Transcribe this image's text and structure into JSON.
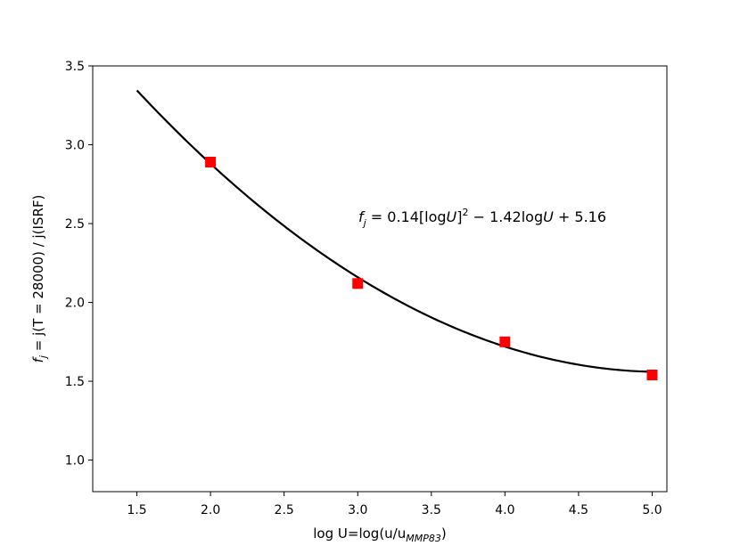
{
  "chart_data": {
    "type": "scatter",
    "title": "",
    "xlabel": {
      "main": "log U=log(u/u",
      "sub": "MMP83",
      "tail": ")"
    },
    "ylabel": {
      "f": "f",
      "fsub": "j",
      "rest": " = j(T = 28000) / j(ISRF)"
    },
    "xlim": [
      1.2,
      5.1
    ],
    "ylim": [
      0.8,
      3.5
    ],
    "xticks": [
      1.5,
      2.0,
      2.5,
      3.0,
      3.5,
      4.0,
      4.5,
      5.0
    ],
    "xtick_labels": [
      "1.5",
      "2.0",
      "2.5",
      "3.0",
      "3.5",
      "4.0",
      "4.5",
      "5.0"
    ],
    "yticks": [
      1.0,
      1.5,
      2.0,
      2.5,
      3.0,
      3.5
    ],
    "ytick_labels": [
      "1.0",
      "1.5",
      "2.0",
      "2.5",
      "3.0",
      "3.5"
    ],
    "grid": false,
    "series": [
      {
        "kind": "points",
        "marker": "square",
        "color": "#ff0000",
        "x": [
          2.0,
          3.0,
          4.0,
          5.0
        ],
        "y": [
          2.89,
          2.12,
          1.75,
          1.54
        ]
      },
      {
        "kind": "fit-curve",
        "color": "#000000",
        "coefficients": [
          0.14,
          -1.42,
          5.16
        ],
        "x_range": [
          1.5,
          5.0
        ]
      }
    ],
    "annotation": {
      "f": "f",
      "fsub": "j",
      "eq": " = 0.14[log",
      "U1": "U",
      "sq_close": "]",
      "sup": "2",
      "mid": " − 1.42log",
      "U2": "U",
      "end": " + 5.16"
    }
  }
}
